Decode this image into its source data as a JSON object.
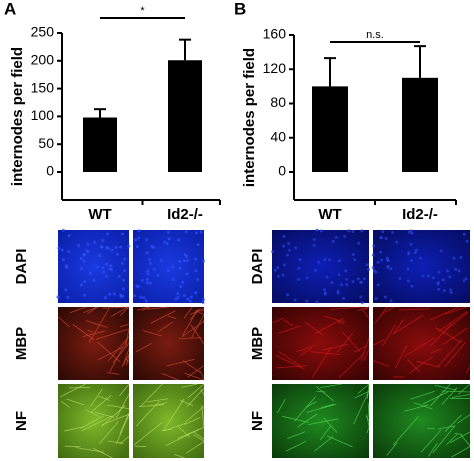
{
  "figure": {
    "panel_labels": [
      "A",
      "B"
    ],
    "row_labels": [
      "DAPI",
      "MBP",
      "NF"
    ]
  },
  "chart_data": [
    {
      "type": "bar",
      "ylabel": "internodes per field",
      "categories": [
        "WT",
        "Id2-/-"
      ],
      "values": [
        98,
        201
      ],
      "errors": [
        15,
        37
      ],
      "color": "#000000",
      "ylim": [
        0,
        250
      ],
      "yticks": [
        0,
        50,
        100,
        150,
        200,
        250
      ],
      "annotation": "*"
    },
    {
      "type": "bar",
      "ylabel": "internodes per field",
      "categories": [
        "WT",
        "Id2-/-"
      ],
      "values": [
        100,
        110
      ],
      "errors": [
        33,
        37
      ],
      "color": "#000000",
      "ylim": [
        0,
        160
      ],
      "yticks": [
        0,
        40,
        80,
        120,
        160
      ],
      "annotation": "n.s."
    }
  ]
}
